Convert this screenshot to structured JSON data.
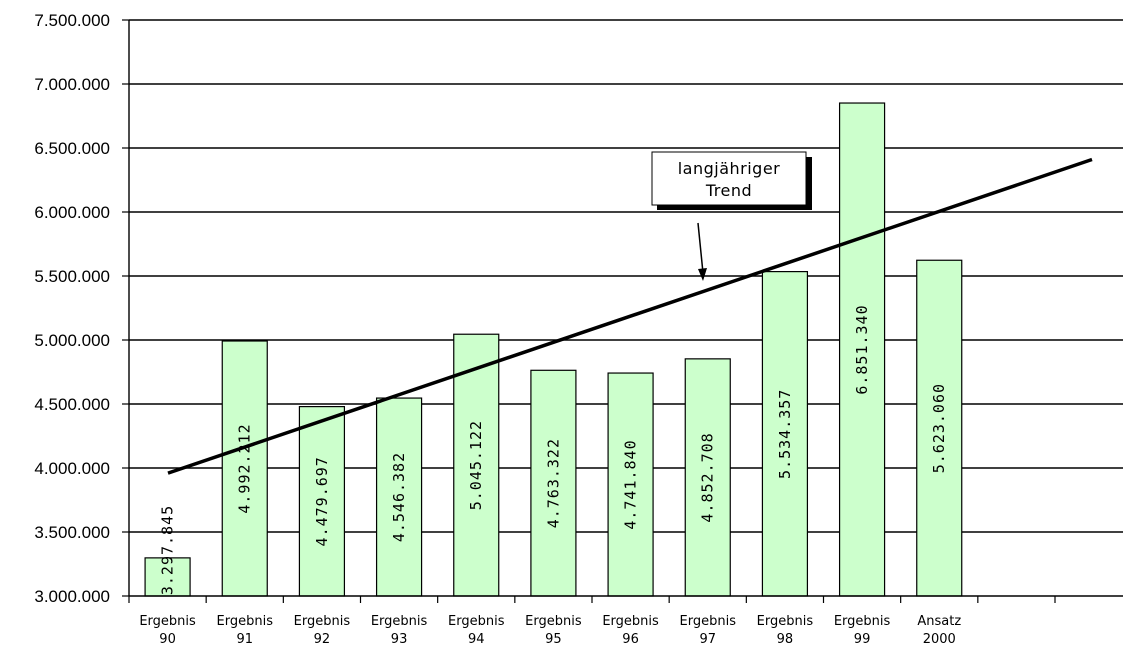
{
  "chart_data": {
    "type": "bar",
    "categories": [
      [
        "Ergebnis",
        "90"
      ],
      [
        "Ergebnis",
        "91"
      ],
      [
        "Ergebnis",
        "92"
      ],
      [
        "Ergebnis",
        "93"
      ],
      [
        "Ergebnis",
        "94"
      ],
      [
        "Ergebnis",
        "95"
      ],
      [
        "Ergebnis",
        "96"
      ],
      [
        "Ergebnis",
        "97"
      ],
      [
        "Ergebnis",
        "98"
      ],
      [
        "Ergebnis",
        "99"
      ],
      [
        "Ansatz",
        "2000"
      ]
    ],
    "values": [
      3297845,
      4992212,
      4479697,
      4546382,
      5045122,
      4763322,
      4741840,
      4852708,
      5534357,
      6851340,
      5623060
    ],
    "value_labels": [
      "3.297.845",
      "4.992.212",
      "4.479.697",
      "4.546.382",
      "5.045.122",
      "4.763.322",
      "4.741.840",
      "4.852.708",
      "5.534.357",
      "6.851.340",
      "5.623.060"
    ],
    "ylim": [
      3000000,
      7500000
    ],
    "y_ticks": [
      3000000,
      3500000,
      4000000,
      4500000,
      5000000,
      5500000,
      6000000,
      6500000,
      7000000,
      7500000
    ],
    "y_tick_labels": [
      "3.000.000",
      "3.500.000",
      "4.000.000",
      "4.500.000",
      "5.000.000",
      "5.500.000",
      "6.000.000",
      "6.500.000",
      "7.000.000",
      "7.500.000"
    ],
    "slots": 13,
    "grid": true,
    "bar_color": "#ccffcc",
    "trend_line": {
      "from_value": 3960000,
      "to_value": 6410000
    },
    "annotation": {
      "lines": [
        "langjähriger",
        "Trend"
      ]
    }
  }
}
